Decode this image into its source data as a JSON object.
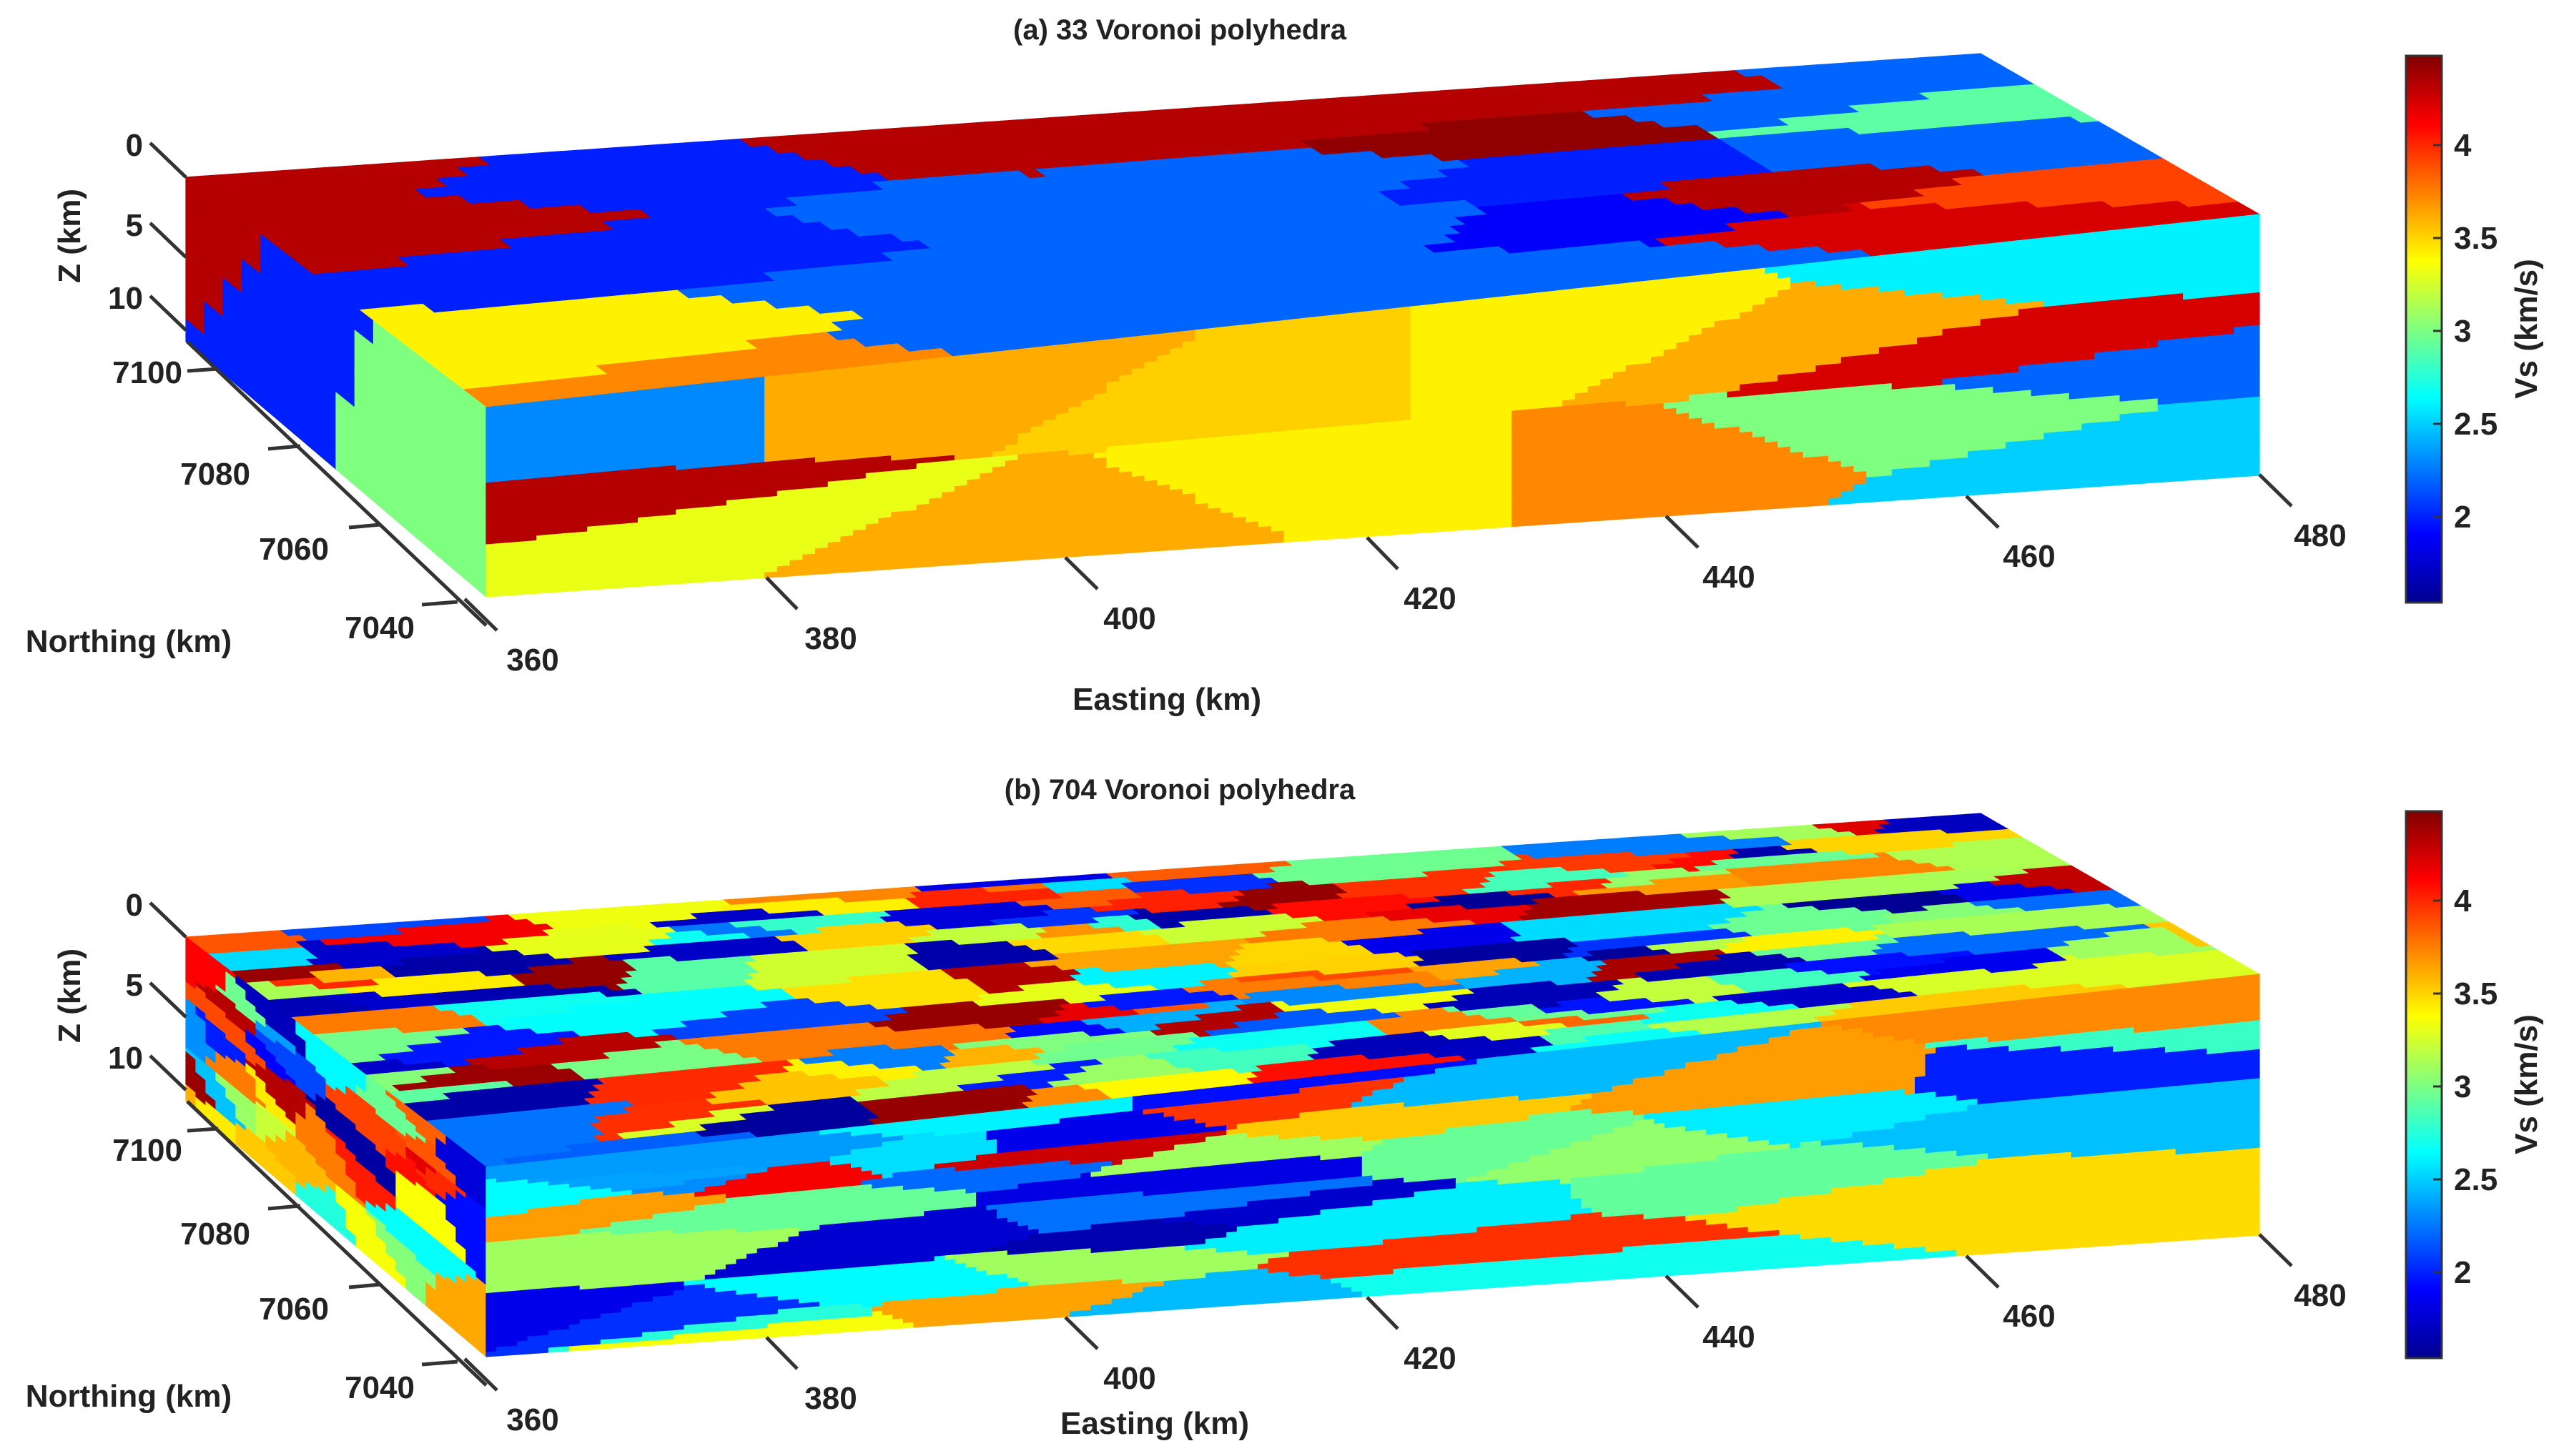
{
  "chart_data": [
    {
      "type": "3d-voronoi-block",
      "title": "(a) 33 Voronoi polyhedra",
      "cell_count": 33,
      "xlabel": "Easting (km)",
      "ylabel": "Northing (km)",
      "zlabel": "Z (km)",
      "x_ticks": [
        "360",
        "380",
        "400",
        "420",
        "440",
        "460",
        "480"
      ],
      "y_ticks": [
        "7040",
        "7060",
        "7080",
        "7100"
      ],
      "z_ticks": [
        "0",
        "5",
        "10"
      ],
      "colorbar": {
        "label": "Vs (km/s)",
        "ticks": [
          "2",
          "2.5",
          "3",
          "3.5",
          "4"
        ],
        "range": [
          1.55,
          4.45
        ],
        "colormap": "jet"
      },
      "top_face_values": [
        4.3,
        4.3,
        2.0,
        2.0,
        4.3,
        2.2,
        2.2,
        4.3,
        2.2,
        2.2,
        4.4,
        4.3,
        2.0,
        2.2,
        2.2,
        1.9,
        2.2,
        2.2,
        3.4,
        3.7,
        4.3,
        4.2,
        3.9,
        2.9,
        2.2,
        2.2,
        2.2,
        2.2
      ],
      "front_face_values": [
        4.3,
        2.3,
        3.3,
        3.6,
        3.6,
        3.5,
        3.4,
        3.4,
        3.7,
        3.6,
        3.0,
        4.2,
        2.6,
        2.2,
        2.5
      ],
      "side_face_values": [
        4.3,
        2.0,
        3.0,
        2.2,
        2.2
      ]
    },
    {
      "type": "3d-voronoi-block",
      "title": "(b) 704 Voronoi polyhedra",
      "cell_count": 704,
      "xlabel": "Easting (km)",
      "ylabel": "Northing (km)",
      "zlabel": "Z (km)",
      "x_ticks": [
        "360",
        "380",
        "400",
        "420",
        "440",
        "460",
        "480"
      ],
      "y_ticks": [
        "7040",
        "7060",
        "7080",
        "7100"
      ],
      "z_ticks": [
        "0",
        "5",
        "10"
      ],
      "colorbar": {
        "label": "Vs (km/s)",
        "ticks": [
          "2",
          "2.5",
          "3",
          "3.5",
          "4"
        ],
        "range": [
          1.55,
          4.45
        ],
        "colormap": "jet"
      },
      "value_range_km_s": [
        1.6,
        4.4
      ]
    }
  ]
}
